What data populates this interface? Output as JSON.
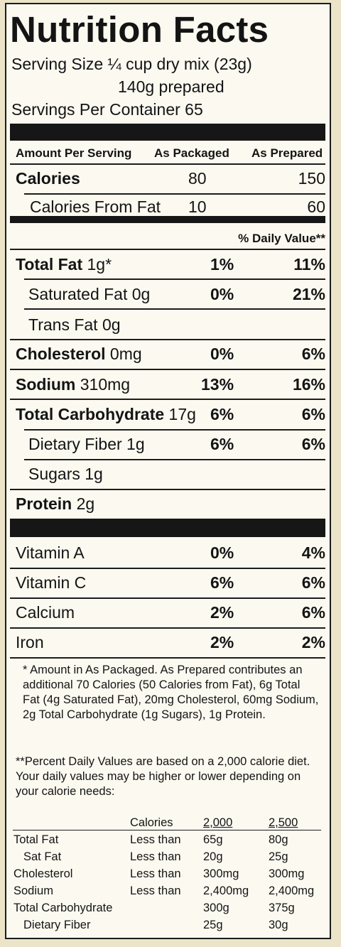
{
  "title": "Nutrition Facts",
  "serving": {
    "line1": "Serving Size ¼ cup dry mix (23g)",
    "line2": "140g prepared",
    "line3": "Servings Per Container 65"
  },
  "columns": {
    "amount": "Amount Per Serving",
    "packaged": "As Packaged",
    "prepared": "As Prepared",
    "dv": "% Daily Value**"
  },
  "calories": {
    "label": "Calories",
    "packaged": "80",
    "prepared": "150",
    "fat_label": "Calories From Fat",
    "fat_packaged": "10",
    "fat_prepared": "60"
  },
  "nutrients": [
    {
      "name": "Total Fat",
      "amount": "1g*",
      "packaged": "1%",
      "prepared": "11%"
    },
    {
      "name": "Saturated Fat",
      "amount": "0g",
      "packaged": "0%",
      "prepared": "21%"
    },
    {
      "name": "Trans Fat",
      "amount": "0g",
      "packaged": "",
      "prepared": ""
    },
    {
      "name": "Cholesterol",
      "amount": "0mg",
      "packaged": "0%",
      "prepared": "6%"
    },
    {
      "name": "Sodium",
      "amount": "310mg",
      "packaged": "13%",
      "prepared": "16%"
    },
    {
      "name": "Total Carbohydrate",
      "amount": "17g",
      "packaged": "6%",
      "prepared": "6%"
    },
    {
      "name": "Dietary Fiber",
      "amount": "1g",
      "packaged": "6%",
      "prepared": "6%"
    },
    {
      "name": "Sugars",
      "amount": "1g",
      "packaged": "",
      "prepared": ""
    },
    {
      "name": "Protein",
      "amount": "2g",
      "packaged": "",
      "prepared": ""
    }
  ],
  "vitamins": [
    {
      "name": "Vitamin A",
      "packaged": "0%",
      "prepared": "4%"
    },
    {
      "name": "Vitamin C",
      "packaged": "6%",
      "prepared": "6%"
    },
    {
      "name": "Calcium",
      "packaged": "2%",
      "prepared": "6%"
    },
    {
      "name": "Iron",
      "packaged": "2%",
      "prepared": "2%"
    }
  ],
  "footnote1": "* Amount in As Packaged. As Prepared contributes an additional 70 Calories (50 Calories from Fat), 6g Total Fat (4g Saturated Fat), 20mg Cholesterol, 60mg Sodium, 2g Total Carbohydrate (1g Sugars), 1g Protein.",
  "footnote2": "**Percent Daily Values are based on a 2,000 calorie diet. Your daily values may be higher or lower depending on your calorie needs:",
  "dv_table": {
    "header": {
      "label": "Calories",
      "c2000": "2,000",
      "c2500": "2,500"
    },
    "rows": [
      {
        "name": "Total Fat",
        "qual": "Less than",
        "c2000": "65g",
        "c2500": "80g"
      },
      {
        "name": "Sat Fat",
        "qual": "Less than",
        "c2000": "20g",
        "c2500": "25g"
      },
      {
        "name": "Cholesterol",
        "qual": "Less than",
        "c2000": "300mg",
        "c2500": "300mg"
      },
      {
        "name": "Sodium",
        "qual": "Less than",
        "c2000": "2,400mg",
        "c2500": "2,400mg"
      },
      {
        "name": "Total Carbohydrate",
        "qual": "",
        "c2000": "300g",
        "c2500": "375g"
      },
      {
        "name": "Dietary Fiber",
        "qual": "",
        "c2000": "25g",
        "c2500": "30g"
      }
    ]
  }
}
